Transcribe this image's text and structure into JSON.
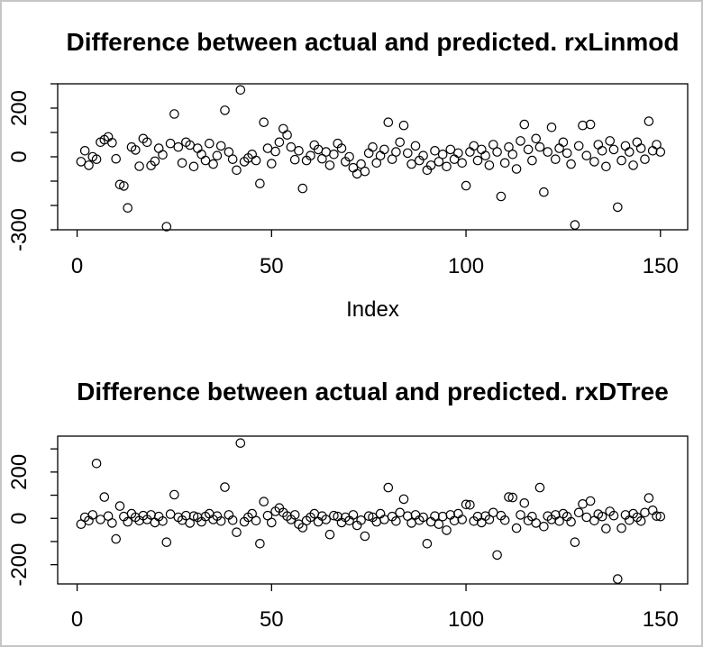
{
  "window": {
    "background": "#ffffff",
    "border_color": "#c5c5c5",
    "plot_color": "#000000"
  },
  "chart_data": [
    {
      "type": "scatter",
      "title": "Difference between actual and predicted. rxLinmod",
      "xlabel": "Index",
      "ylabel": "",
      "marker": "open-circle",
      "x_description": "observation index 1 to 150",
      "xlim": [
        -5,
        157
      ],
      "ylim": [
        -300,
        300
      ],
      "x_ticks": [
        0,
        50,
        100,
        150
      ],
      "y_ticks": [
        300,
        200,
        100,
        0,
        -100,
        -200,
        -300
      ],
      "y_tick_labels": [
        200,
        0,
        -300
      ],
      "grid": false,
      "legend": false,
      "y": [
        -20,
        25,
        -35,
        0,
        -10,
        60,
        70,
        82,
        58,
        -8,
        -114,
        -120,
        -210,
        40,
        28,
        -39,
        75,
        60,
        -36,
        -18,
        35,
        8,
        -287,
        55,
        176,
        40,
        -25,
        60,
        48,
        -40,
        35,
        10,
        -15,
        55,
        -30,
        5,
        45,
        191,
        20,
        -10,
        -55,
        275,
        -20,
        -5,
        10,
        -15,
        -110,
        142,
        35,
        -28,
        22,
        60,
        115,
        90,
        40,
        -12,
        25,
        -130,
        -15,
        5,
        48,
        30,
        -8,
        20,
        -35,
        10,
        55,
        35,
        -20,
        0,
        -45,
        -70,
        -30,
        -60,
        15,
        40,
        -25,
        5,
        30,
        142,
        -10,
        20,
        60,
        129,
        15,
        -30,
        45,
        -15,
        5,
        -55,
        -35,
        25,
        -20,
        10,
        -40,
        30,
        -10,
        15,
        -25,
        -119,
        20,
        45,
        -15,
        30,
        5,
        -35,
        50,
        20,
        -163,
        -25,
        40,
        10,
        -50,
        65,
        133,
        30,
        -15,
        75,
        40,
        -145,
        20,
        121,
        -10,
        35,
        60,
        15,
        -30,
        -280,
        45,
        129,
        5,
        133,
        -20,
        50,
        25,
        -40,
        65,
        30,
        -207,
        -15,
        45,
        20,
        -35,
        60,
        35,
        -10,
        146,
        25,
        50,
        20
      ]
    },
    {
      "type": "scatter",
      "title": "Difference between actual and predicted. rxDTree",
      "xlabel": "",
      "ylabel": "",
      "marker": "open-circle",
      "x_description": "observation index 1 to 150",
      "xlim": [
        -5,
        157
      ],
      "ylim": [
        -283,
        355
      ],
      "x_ticks": [
        0,
        50,
        100,
        150
      ],
      "y_ticks": [
        300,
        200,
        100,
        0,
        -100,
        -200
      ],
      "y_tick_labels": [
        200,
        0,
        -200
      ],
      "grid": false,
      "legend": false,
      "y": [
        -25,
        5,
        -10,
        15,
        237,
        -5,
        92,
        10,
        -20,
        -89,
        53,
        8,
        -15,
        20,
        5,
        -10,
        12,
        -5,
        15,
        -18,
        8,
        -12,
        -103,
        18,
        102,
        5,
        -8,
        12,
        -20,
        10,
        5,
        -15,
        8,
        20,
        -5,
        10,
        -12,
        135,
        15,
        -8,
        -60,
        325,
        -15,
        5,
        20,
        -10,
        -109,
        72,
        12,
        -18,
        30,
        45,
        25,
        10,
        -5,
        15,
        -25,
        -40,
        -10,
        5,
        20,
        -15,
        10,
        -5,
        -70,
        12,
        8,
        -18,
        5,
        -10,
        15,
        -30,
        -8,
        -77,
        10,
        5,
        -15,
        20,
        -5,
        133,
        8,
        -12,
        25,
        83,
        10,
        -20,
        15,
        -8,
        5,
        -109,
        -15,
        10,
        -25,
        8,
        -51,
        15,
        -10,
        20,
        -5,
        60,
        58,
        -12,
        8,
        -18,
        10,
        -5,
        25,
        -158,
        12,
        -8,
        92,
        90,
        -42,
        15,
        66,
        -10,
        8,
        -20,
        133,
        -35,
        10,
        -5,
        15,
        -12,
        20,
        8,
        -15,
        -103,
        25,
        62,
        5,
        75,
        -10,
        18,
        8,
        -44,
        30,
        12,
        -262,
        -42,
        15,
        -8,
        20,
        5,
        -12,
        25,
        88,
        35,
        10,
        8
      ]
    }
  ]
}
